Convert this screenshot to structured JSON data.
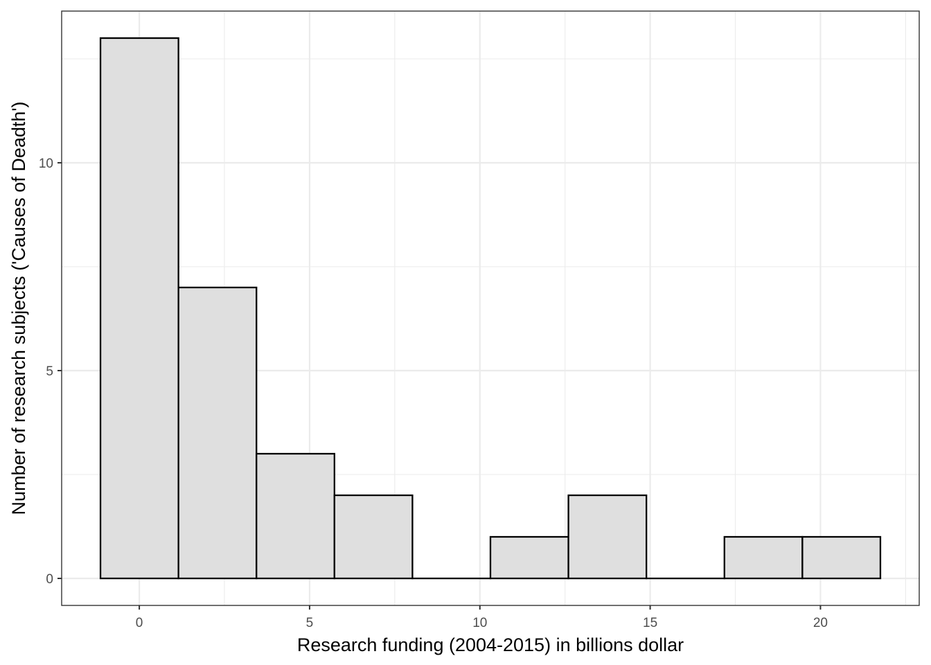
{
  "chart_data": {
    "type": "bar",
    "subtype": "histogram",
    "xlabel": "Research funding (2004-2015) in billions dollar",
    "ylabel": "Number of research subjects ('Causes of Deadth')",
    "bin_width": 2.29,
    "bins": [
      {
        "x_start": -1.14,
        "x_end": 1.15,
        "count": 13
      },
      {
        "x_start": 1.15,
        "x_end": 3.44,
        "count": 7
      },
      {
        "x_start": 3.44,
        "x_end": 5.73,
        "count": 3
      },
      {
        "x_start": 5.73,
        "x_end": 8.02,
        "count": 2
      },
      {
        "x_start": 8.02,
        "x_end": 10.31,
        "count": 0
      },
      {
        "x_start": 10.31,
        "x_end": 12.6,
        "count": 1
      },
      {
        "x_start": 12.6,
        "x_end": 14.89,
        "count": 2
      },
      {
        "x_start": 14.89,
        "x_end": 17.18,
        "count": 0
      },
      {
        "x_start": 17.18,
        "x_end": 19.47,
        "count": 1
      },
      {
        "x_start": 19.47,
        "x_end": 21.76,
        "count": 1
      }
    ],
    "xlim": [
      -2.28,
      22.9
    ],
    "ylim": [
      -0.65,
      13.65
    ],
    "x_ticks": [
      0,
      5,
      10,
      15,
      20
    ],
    "y_ticks": [
      0,
      5,
      10
    ],
    "grid": true,
    "fill_color": "#dfdfdf",
    "edge_color": "#000000"
  }
}
